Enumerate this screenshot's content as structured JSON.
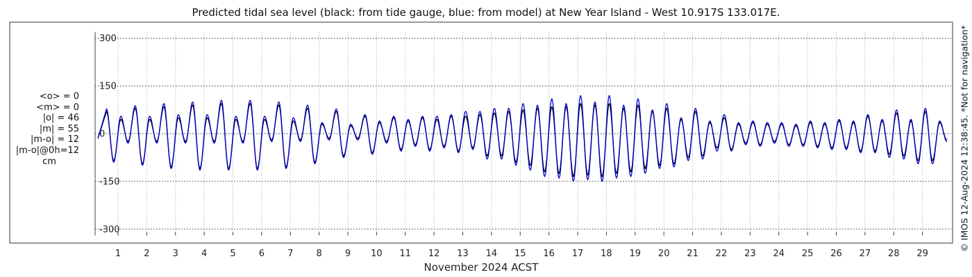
{
  "chart_data": {
    "type": "line",
    "title": "Predicted tidal sea level (black: from tide gauge, blue: from model) at New Year Island - West 10.917S 133.017E.",
    "xlabel": "November 2024 ACST",
    "ylabel": "",
    "unit": "cm",
    "xlim": [
      0.3,
      30.0
    ],
    "ylim": [
      -320,
      320
    ],
    "yticks": [
      300,
      150,
      0,
      -150,
      -300
    ],
    "xticks": [
      1,
      2,
      3,
      4,
      5,
      6,
      7,
      8,
      9,
      10,
      11,
      12,
      13,
      14,
      15,
      16,
      17,
      18,
      19,
      20,
      21,
      22,
      23,
      24,
      25,
      26,
      27,
      28,
      29
    ],
    "grid": true,
    "stats": [
      "<o> = 0",
      "<m> = 0",
      "|o| = 46",
      "|m| = 55",
      "|m-o| = 12",
      "|m-o|@0h=12",
      "cm"
    ],
    "series": [
      {
        "name": "from tide gauge",
        "color": "#000000",
        "peaks": [
          {
            "day": 0.6,
            "high": 70,
            "low": -85
          },
          {
            "day": 1.1,
            "high": 45,
            "low": -25
          },
          {
            "day": 1.6,
            "high": 80,
            "low": -95
          },
          {
            "day": 2.1,
            "high": 45,
            "low": -25
          },
          {
            "day": 2.6,
            "high": 85,
            "low": -105
          },
          {
            "day": 3.1,
            "high": 50,
            "low": -25
          },
          {
            "day": 3.6,
            "high": 90,
            "low": -110
          },
          {
            "day": 4.1,
            "high": 50,
            "low": -25
          },
          {
            "day": 4.6,
            "high": 95,
            "low": -110
          },
          {
            "day": 5.1,
            "high": 45,
            "low": -25
          },
          {
            "day": 5.6,
            "high": 95,
            "low": -110
          },
          {
            "day": 6.1,
            "high": 45,
            "low": -20
          },
          {
            "day": 6.6,
            "high": 90,
            "low": -105
          },
          {
            "day": 7.1,
            "high": 40,
            "low": -20
          },
          {
            "day": 7.6,
            "high": 80,
            "low": -90
          },
          {
            "day": 8.1,
            "high": 30,
            "low": -15
          },
          {
            "day": 8.6,
            "high": 70,
            "low": -70
          },
          {
            "day": 9.1,
            "high": 25,
            "low": -15
          },
          {
            "day": 9.6,
            "high": 55,
            "low": -60
          },
          {
            "day": 10.1,
            "high": 35,
            "low": -25
          },
          {
            "day": 10.6,
            "high": 50,
            "low": -50
          },
          {
            "day": 11.1,
            "high": 40,
            "low": -35
          },
          {
            "day": 11.6,
            "high": 50,
            "low": -50
          },
          {
            "day": 12.1,
            "high": 45,
            "low": -40
          },
          {
            "day": 12.6,
            "high": 55,
            "low": -55
          },
          {
            "day": 13.1,
            "high": 55,
            "low": -45
          },
          {
            "day": 13.6,
            "high": 60,
            "low": -70
          },
          {
            "day": 14.1,
            "high": 65,
            "low": -70
          },
          {
            "day": 14.6,
            "high": 70,
            "low": -90
          },
          {
            "day": 15.1,
            "high": 75,
            "low": -100
          },
          {
            "day": 15.6,
            "high": 80,
            "low": -120
          },
          {
            "day": 16.1,
            "high": 85,
            "low": -125
          },
          {
            "day": 16.6,
            "high": 85,
            "low": -135
          },
          {
            "day": 17.1,
            "high": 95,
            "low": -130
          },
          {
            "day": 17.6,
            "high": 90,
            "low": -135
          },
          {
            "day": 18.1,
            "high": 95,
            "low": -125
          },
          {
            "day": 18.6,
            "high": 80,
            "low": -120
          },
          {
            "day": 19.1,
            "high": 90,
            "low": -110
          },
          {
            "day": 19.6,
            "high": 70,
            "low": -100
          },
          {
            "day": 20.1,
            "high": 80,
            "low": -95
          },
          {
            "day": 20.6,
            "high": 45,
            "low": -75
          },
          {
            "day": 21.1,
            "high": 70,
            "low": -70
          },
          {
            "day": 21.6,
            "high": 35,
            "low": -45
          },
          {
            "day": 22.1,
            "high": 50,
            "low": -50
          },
          {
            "day": 22.6,
            "high": 30,
            "low": -30
          },
          {
            "day": 23.1,
            "high": 35,
            "low": -35
          },
          {
            "day": 23.6,
            "high": 30,
            "low": -25
          },
          {
            "day": 24.1,
            "high": 30,
            "low": -35
          },
          {
            "day": 24.6,
            "high": 25,
            "low": -35
          },
          {
            "day": 25.1,
            "high": 35,
            "low": -40
          },
          {
            "day": 25.6,
            "high": 30,
            "low": -45
          },
          {
            "day": 26.1,
            "high": 40,
            "low": -45
          },
          {
            "day": 26.6,
            "high": 35,
            "low": -55
          },
          {
            "day": 27.1,
            "high": 55,
            "low": -55
          },
          {
            "day": 27.6,
            "high": 40,
            "low": -65
          },
          {
            "day": 28.1,
            "high": 65,
            "low": -70
          },
          {
            "day": 28.6,
            "high": 40,
            "low": -85
          },
          {
            "day": 29.1,
            "high": 70,
            "low": -85
          },
          {
            "day": 29.6,
            "high": 35,
            "low": -20
          }
        ]
      },
      {
        "name": "from model",
        "color": "#0000cc",
        "peaks": [
          {
            "day": 0.6,
            "high": 78,
            "low": -90
          },
          {
            "day": 1.1,
            "high": 55,
            "low": -30
          },
          {
            "day": 1.6,
            "high": 88,
            "low": -100
          },
          {
            "day": 2.1,
            "high": 55,
            "low": -30
          },
          {
            "day": 2.6,
            "high": 95,
            "low": -110
          },
          {
            "day": 3.1,
            "high": 60,
            "low": -30
          },
          {
            "day": 3.6,
            "high": 100,
            "low": -115
          },
          {
            "day": 4.1,
            "high": 60,
            "low": -30
          },
          {
            "day": 4.6,
            "high": 105,
            "low": -115
          },
          {
            "day": 5.1,
            "high": 55,
            "low": -30
          },
          {
            "day": 5.6,
            "high": 105,
            "low": -115
          },
          {
            "day": 6.1,
            "high": 55,
            "low": -25
          },
          {
            "day": 6.6,
            "high": 100,
            "low": -110
          },
          {
            "day": 7.1,
            "high": 50,
            "low": -25
          },
          {
            "day": 7.6,
            "high": 90,
            "low": -95
          },
          {
            "day": 8.1,
            "high": 35,
            "low": -20
          },
          {
            "day": 8.6,
            "high": 78,
            "low": -75
          },
          {
            "day": 9.1,
            "high": 30,
            "low": -20
          },
          {
            "day": 9.6,
            "high": 60,
            "low": -65
          },
          {
            "day": 10.1,
            "high": 40,
            "low": -30
          },
          {
            "day": 10.6,
            "high": 55,
            "low": -55
          },
          {
            "day": 11.1,
            "high": 45,
            "low": -40
          },
          {
            "day": 11.6,
            "high": 55,
            "low": -55
          },
          {
            "day": 12.1,
            "high": 55,
            "low": -45
          },
          {
            "day": 12.6,
            "high": 60,
            "low": -60
          },
          {
            "day": 13.1,
            "high": 70,
            "low": -50
          },
          {
            "day": 13.6,
            "high": 70,
            "low": -80
          },
          {
            "day": 14.1,
            "high": 80,
            "low": -80
          },
          {
            "day": 14.6,
            "high": 80,
            "low": -100
          },
          {
            "day": 15.1,
            "high": 95,
            "low": -115
          },
          {
            "day": 15.6,
            "high": 90,
            "low": -135
          },
          {
            "day": 16.1,
            "high": 110,
            "low": -140
          },
          {
            "day": 16.6,
            "high": 95,
            "low": -150
          },
          {
            "day": 17.1,
            "high": 120,
            "low": -145
          },
          {
            "day": 17.6,
            "high": 100,
            "low": -150
          },
          {
            "day": 18.1,
            "high": 120,
            "low": -140
          },
          {
            "day": 18.6,
            "high": 90,
            "low": -135
          },
          {
            "day": 19.1,
            "high": 110,
            "low": -125
          },
          {
            "day": 19.6,
            "high": 75,
            "low": -110
          },
          {
            "day": 20.1,
            "high": 95,
            "low": -105
          },
          {
            "day": 20.6,
            "high": 50,
            "low": -85
          },
          {
            "day": 21.1,
            "high": 80,
            "low": -80
          },
          {
            "day": 21.6,
            "high": 40,
            "low": -55
          },
          {
            "day": 22.1,
            "high": 60,
            "low": -55
          },
          {
            "day": 22.6,
            "high": 35,
            "low": -35
          },
          {
            "day": 23.1,
            "high": 40,
            "low": -40
          },
          {
            "day": 23.6,
            "high": 35,
            "low": -30
          },
          {
            "day": 24.1,
            "high": 35,
            "low": -40
          },
          {
            "day": 24.6,
            "high": 30,
            "low": -40
          },
          {
            "day": 25.1,
            "high": 40,
            "low": -45
          },
          {
            "day": 25.6,
            "high": 35,
            "low": -50
          },
          {
            "day": 26.1,
            "high": 45,
            "low": -50
          },
          {
            "day": 26.6,
            "high": 40,
            "low": -60
          },
          {
            "day": 27.1,
            "high": 60,
            "low": -60
          },
          {
            "day": 27.6,
            "high": 45,
            "low": -75
          },
          {
            "day": 28.1,
            "high": 75,
            "low": -80
          },
          {
            "day": 28.6,
            "high": 45,
            "low": -95
          },
          {
            "day": 29.1,
            "high": 80,
            "low": -95
          },
          {
            "day": 29.6,
            "high": 40,
            "low": -25
          }
        ]
      }
    ]
  },
  "footer": {
    "watermark": "© IMOS 12-Aug-2024 12:38:45. *Not for navigation*"
  }
}
